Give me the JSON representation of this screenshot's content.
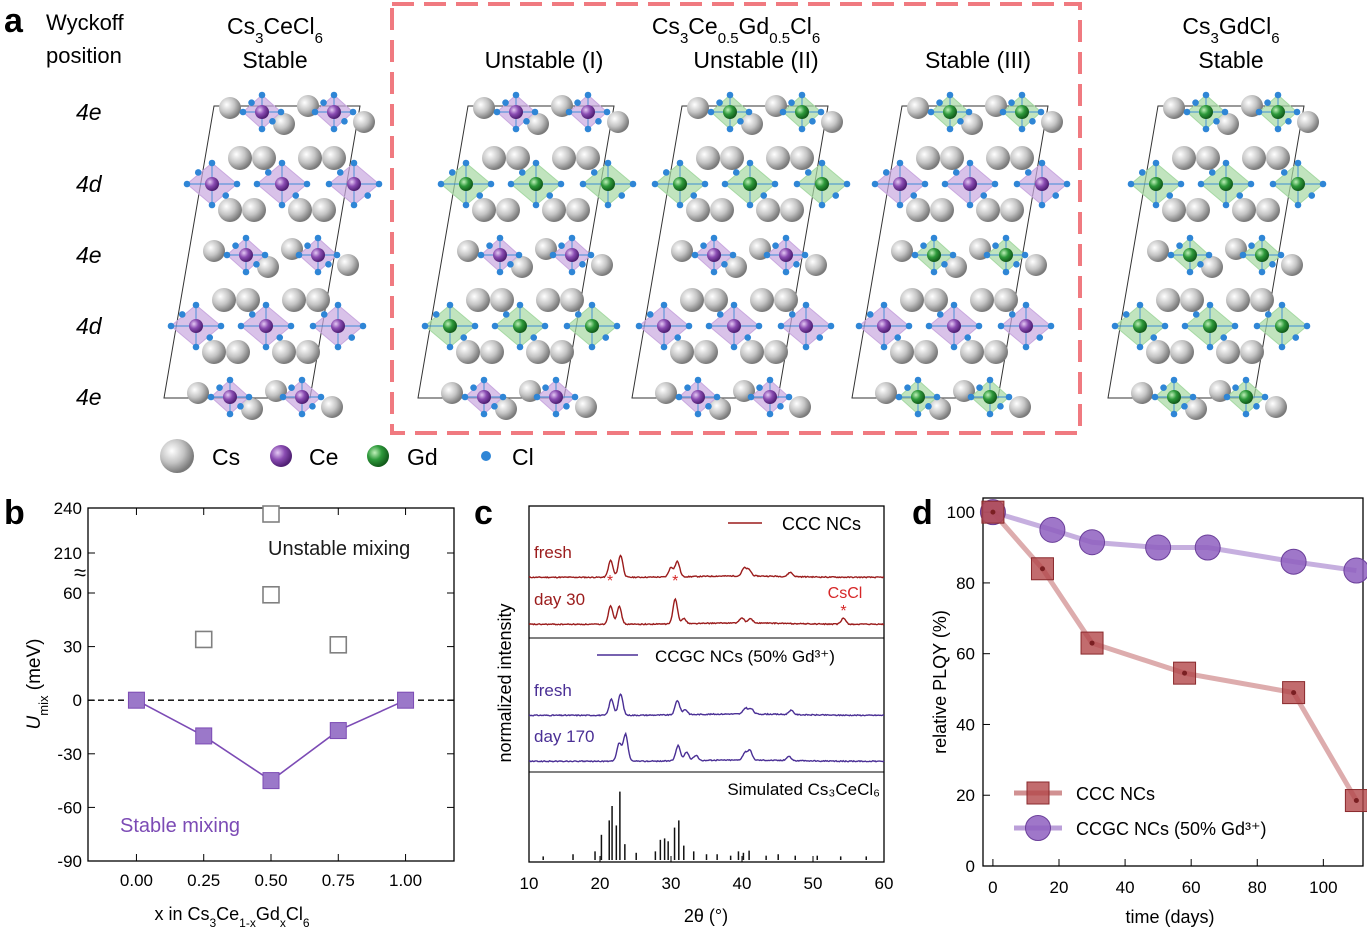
{
  "panel_a": {
    "label": "a",
    "wyckoff_header": [
      "Wyckoff",
      "position"
    ],
    "wyckoff_sites": [
      "4e",
      "4d",
      "4e",
      "4d",
      "4e"
    ],
    "structures": [
      {
        "formula": [
          "Cs",
          "3",
          "CeCl",
          "6",
          ""
        ],
        "status": "Stable",
        "sites": [
          "Ce",
          "Ce",
          "Ce",
          "Ce",
          "Ce"
        ]
      },
      {
        "status": "Unstable (I)",
        "sites": [
          "Ce",
          "Gd",
          "Ce",
          "Gd",
          "Ce"
        ]
      },
      {
        "status": "Unstable (II)",
        "sites": [
          "Gd",
          "Gd",
          "Ce",
          "Ce",
          "Ce"
        ]
      },
      {
        "status": "Stable (III)",
        "sites": [
          "Gd",
          "Ce",
          "Gd",
          "Ce",
          "Gd"
        ]
      },
      {
        "formula": [
          "Cs",
          "3",
          "GdCl",
          "6",
          ""
        ],
        "status": "Stable",
        "sites": [
          "Gd",
          "Gd",
          "Gd",
          "Gd",
          "Gd"
        ]
      }
    ],
    "mixed_header": [
      "Cs",
      "3",
      "Ce",
      "0.5",
      "Gd",
      "0.5",
      "Cl",
      "6"
    ],
    "legend": [
      {
        "label": "Cs",
        "color": "#a9a9a9"
      },
      {
        "label": "Ce",
        "color": "#7e3fa0"
      },
      {
        "label": "Gd",
        "color": "#2e9a3b"
      },
      {
        "label": "Cl",
        "color": "#2f86d6"
      }
    ],
    "colors": {
      "ce_poly": "#c9a8df",
      "gd_poly": "#a6d9a3",
      "dash_box": "#f07a80"
    }
  },
  "chart_data": [
    {
      "panel": "b",
      "type": "scatter",
      "ylabel_main": "U",
      "ylabel_sub": "mix",
      "ylabel_unit": " (meV)",
      "xlabel_parts": [
        "x in Cs",
        "3",
        "Ce",
        "1-x",
        "Gd",
        "x",
        "Cl",
        "6"
      ],
      "x_ticks": [
        "0.00",
        "0.25",
        "0.50",
        "0.75",
        "1.00"
      ],
      "y_ticks_lower": [
        -90,
        -60,
        -30,
        0,
        30,
        60
      ],
      "y_ticks_upper": [
        210,
        240
      ],
      "axis_break": true,
      "ylim": [
        -90,
        240
      ],
      "xlim": [
        -0.18,
        1.18
      ],
      "series": [
        {
          "name": "Stable mixing",
          "x": [
            0,
            0.25,
            0.5,
            0.75,
            1.0
          ],
          "y": [
            0,
            -20,
            -45,
            -17,
            0
          ],
          "color": "#7c4bb5",
          "marker": "filled-square",
          "line": true
        },
        {
          "name": "Unstable mixing",
          "x": [
            0.25,
            0.5,
            0.5,
            0.75
          ],
          "y": [
            34,
            59,
            236,
            31
          ],
          "color": "#808080",
          "marker": "open-square",
          "line": false
        }
      ],
      "annotations": [
        "Unstable mixing",
        "Stable mixing"
      ]
    },
    {
      "panel": "c",
      "type": "line",
      "xlabel": "2θ (°)",
      "ylabel": "normalized intensity",
      "x_ticks": [
        10,
        20,
        30,
        40,
        50,
        60
      ],
      "xlim": [
        10,
        60
      ],
      "sections": [
        {
          "legend": "CCC NCs",
          "color": "#9b1c1c",
          "traces": [
            {
              "name": "fresh",
              "peaks": [
                [
                  21.5,
                  1.0
                ],
                [
                  22.9,
                  1.3
                ],
                [
                  30.0,
                  0.55
                ],
                [
                  30.9,
                  0.9
                ],
                [
                  40.3,
                  0.45
                ],
                [
                  41.0,
                  0.35
                ],
                [
                  46.8,
                  0.25
                ]
              ]
            },
            {
              "name": "day 30",
              "peaks": [
                [
                  21.5,
                  1.1
                ],
                [
                  22.7,
                  1.05
                ],
                [
                  30.6,
                  1.45
                ],
                [
                  31.8,
                  0.3
                ],
                [
                  40.0,
                  0.3
                ],
                [
                  41.2,
                  0.25
                ],
                [
                  54.3,
                  0.35
                ]
              ]
            }
          ],
          "markers": [
            21.4,
            30.6,
            54.3
          ],
          "marker_label": "CsCl"
        },
        {
          "legend": "CCGC NCs (50% Gd³⁺)",
          "color": "#4a2f95",
          "traces": [
            {
              "name": "fresh",
              "peaks": [
                [
                  21.6,
                  0.95
                ],
                [
                  22.9,
                  1.25
                ],
                [
                  30.9,
                  0.85
                ],
                [
                  32.0,
                  0.3
                ],
                [
                  40.5,
                  0.35
                ],
                [
                  41.3,
                  0.3
                ],
                [
                  46.9,
                  0.25
                ]
              ]
            },
            {
              "name": "day 170",
              "peaks": [
                [
                  22.7,
                  1.05
                ],
                [
                  23.6,
                  1.6
                ],
                [
                  31.0,
                  0.9
                ],
                [
                  32.2,
                  0.5
                ],
                [
                  33.5,
                  0.3
                ],
                [
                  40.4,
                  0.4
                ],
                [
                  41.1,
                  0.55
                ],
                [
                  46.6,
                  0.25
                ]
              ]
            }
          ]
        },
        {
          "legend": "Simulated Cs₃CeCl₆",
          "color": "#111111",
          "sticks": [
            [
              12.0,
              0.05
            ],
            [
              16.2,
              0.08
            ],
            [
              19.3,
              0.12
            ],
            [
              20.2,
              0.35
            ],
            [
              21.3,
              0.55
            ],
            [
              21.7,
              0.75
            ],
            [
              22.3,
              0.48
            ],
            [
              22.8,
              0.95
            ],
            [
              23.5,
              0.22
            ],
            [
              25.1,
              0.1
            ],
            [
              27.8,
              0.12
            ],
            [
              28.5,
              0.28
            ],
            [
              29.1,
              0.3
            ],
            [
              29.6,
              0.26
            ],
            [
              30.5,
              0.45
            ],
            [
              31.1,
              0.55
            ],
            [
              31.8,
              0.2
            ],
            [
              33.2,
              0.12
            ],
            [
              35.0,
              0.08
            ],
            [
              36.5,
              0.08
            ],
            [
              38.4,
              0.06
            ],
            [
              39.5,
              0.12
            ],
            [
              40.2,
              0.1
            ],
            [
              41.0,
              0.13
            ],
            [
              43.4,
              0.06
            ],
            [
              45.1,
              0.08
            ],
            [
              47.5,
              0.06
            ],
            [
              50.6,
              0.06
            ],
            [
              53.9,
              0.05
            ],
            [
              57.5,
              0.05
            ]
          ]
        }
      ]
    },
    {
      "panel": "d",
      "type": "line",
      "xlabel": "time (days)",
      "ylabel": "relative PLQY (%)",
      "x_ticks": [
        0,
        20,
        40,
        60,
        80,
        100
      ],
      "y_ticks": [
        0,
        20,
        40,
        60,
        80,
        100
      ],
      "xlim": [
        -3,
        112
      ],
      "ylim": [
        0,
        104
      ],
      "series": [
        {
          "name": "CCC NCs",
          "x": [
            0,
            15,
            30,
            58,
            91,
            110
          ],
          "y": [
            100,
            84,
            63,
            54.5,
            49,
            18.5
          ],
          "color": "#b3474a",
          "marker": "square"
        },
        {
          "name": "CCGC NCs (50% Gd³⁺)",
          "x": [
            0,
            18,
            30,
            50,
            65,
            91,
            110
          ],
          "y": [
            100,
            95,
            91.5,
            90,
            90,
            86,
            83.5
          ],
          "color": "#8e5fbf",
          "marker": "circle"
        }
      ]
    }
  ]
}
